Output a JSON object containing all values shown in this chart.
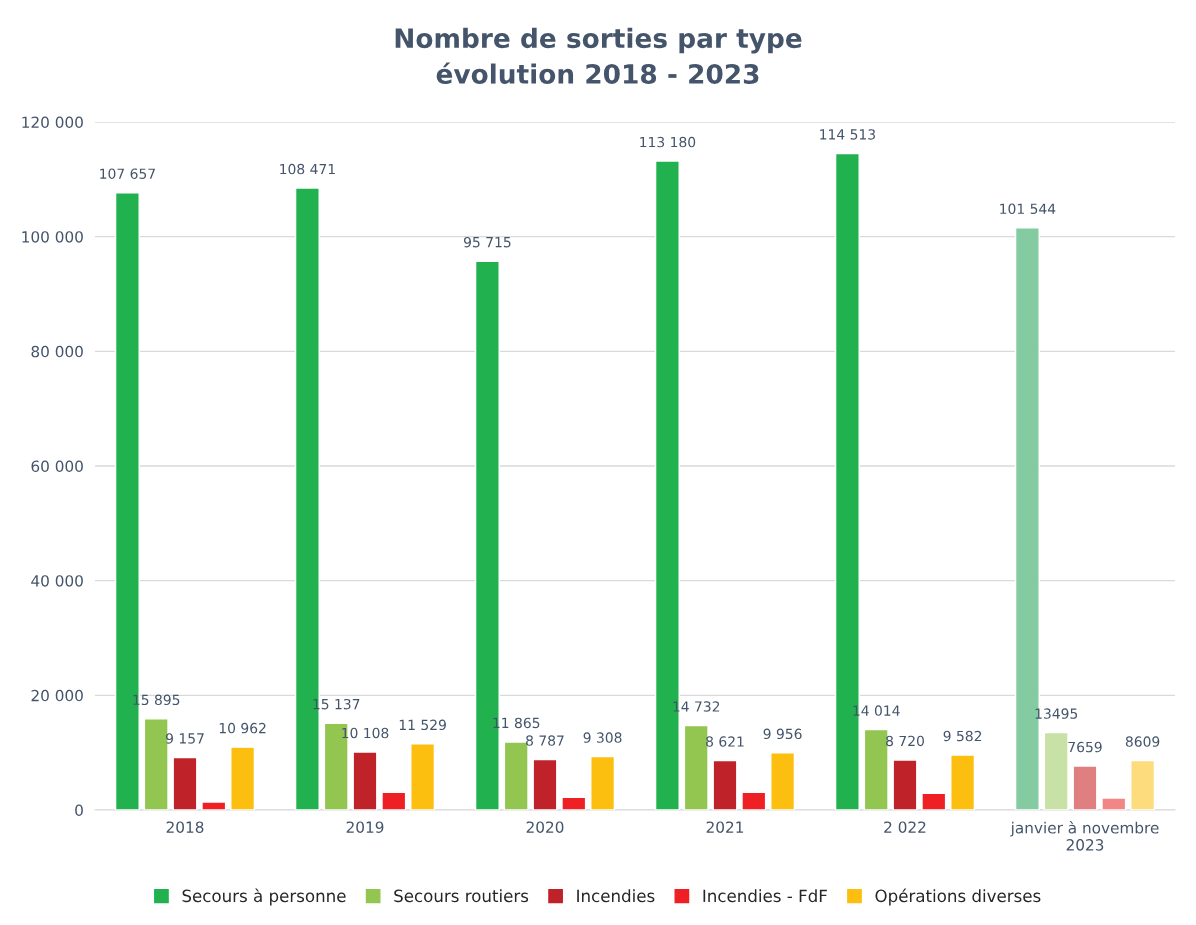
{
  "chart_data": {
    "type": "bar",
    "title": "Nombre de sorties par type\névolution 2018 - 2023",
    "categories": [
      "2018",
      "2019",
      "2020",
      "2021",
      "2 022",
      "janvier à novembre\n2023"
    ],
    "series": [
      {
        "name": "Secours à personne",
        "color": "#21b24f",
        "colors": [
          "#21b24f",
          "#21b24f",
          "#21b24f",
          "#21b24f",
          "#21b24f",
          "#84cba2"
        ],
        "values": [
          107657,
          108471,
          95715,
          113180,
          114513,
          101544
        ],
        "value_labels": [
          "107 657",
          "108 471",
          "95 715",
          "113 180",
          "114 513",
          "101 544"
        ]
      },
      {
        "name": "Secours routiers",
        "color": "#92c651",
        "colors": [
          "#92c651",
          "#92c651",
          "#92c651",
          "#92c651",
          "#92c651",
          "#c8e1a6"
        ],
        "values": [
          15895,
          15137,
          11865,
          14732,
          14014,
          13495
        ],
        "value_labels": [
          "15 895",
          "15 137",
          "11 865",
          "14 732",
          "14 014",
          "13495"
        ]
      },
      {
        "name": "Incendies",
        "color": "#c0222a",
        "colors": [
          "#c0222a",
          "#c0222a",
          "#c0222a",
          "#c0222a",
          "#c0222a",
          "#e07f7f"
        ],
        "values": [
          9157,
          10108,
          8787,
          8621,
          8720,
          7659
        ],
        "value_labels": [
          "9 157",
          "10 108",
          "8 787",
          "8 621",
          "8 720",
          "7659"
        ]
      },
      {
        "name": "Incendies - FdF",
        "color": "#ee2024",
        "colors": [
          "#ee2024",
          "#ee2024",
          "#ee2024",
          "#ee2024",
          "#ee2024",
          "#f28585"
        ],
        "values": [
          1400,
          3100,
          2200,
          3100,
          2900,
          2100
        ]
      },
      {
        "name": "Opérations diverses",
        "color": "#fcbf10",
        "colors": [
          "#fcbf10",
          "#fcbf10",
          "#fcbf10",
          "#fcbf10",
          "#fcbf10",
          "#fddc7d"
        ],
        "values": [
          10962,
          11529,
          9308,
          9956,
          9582,
          8609
        ],
        "value_labels": [
          "10 962",
          "11 529",
          "9 308",
          "9 956",
          "9 582",
          "8609"
        ]
      }
    ],
    "ylim": [
      0,
      120000
    ],
    "yticks": [
      0,
      {
        "value": 20000,
        "label": "20 000"
      },
      {
        "value": 40000,
        "label": "40 000"
      },
      {
        "value": 60000,
        "label": "60 000"
      },
      {
        "value": 80000,
        "label": "80 000"
      },
      {
        "value": 100000,
        "label": "100 000"
      },
      {
        "value": 120000,
        "label": "120 000"
      }
    ],
    "grid": "y",
    "legend": "bottom"
  }
}
